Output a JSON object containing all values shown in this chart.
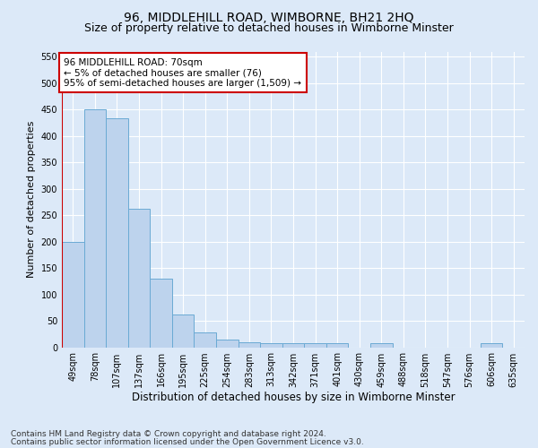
{
  "title": "96, MIDDLEHILL ROAD, WIMBORNE, BH21 2HQ",
  "subtitle": "Size of property relative to detached houses in Wimborne Minster",
  "xlabel": "Distribution of detached houses by size in Wimborne Minster",
  "ylabel": "Number of detached properties",
  "footer_line1": "Contains HM Land Registry data © Crown copyright and database right 2024.",
  "footer_line2": "Contains public sector information licensed under the Open Government Licence v3.0.",
  "categories": [
    "49sqm",
    "78sqm",
    "107sqm",
    "137sqm",
    "166sqm",
    "195sqm",
    "225sqm",
    "254sqm",
    "283sqm",
    "313sqm",
    "342sqm",
    "371sqm",
    "401sqm",
    "430sqm",
    "459sqm",
    "488sqm",
    "518sqm",
    "547sqm",
    "576sqm",
    "606sqm",
    "635sqm"
  ],
  "values": [
    200,
    450,
    433,
    262,
    130,
    62,
    28,
    14,
    9,
    7,
    7,
    7,
    7,
    0,
    7,
    0,
    0,
    0,
    0,
    7,
    0
  ],
  "bar_color": "#bdd3ed",
  "bar_edge_color": "#6aaad4",
  "annotation_box_text": "96 MIDDLEHILL ROAD: 70sqm\n← 5% of detached houses are smaller (76)\n95% of semi-detached houses are larger (1,509) →",
  "annotation_box_facecolor": "white",
  "annotation_box_edgecolor": "#cc0000",
  "marker_line_color": "#cc0000",
  "ylim": [
    0,
    560
  ],
  "yticks": [
    0,
    50,
    100,
    150,
    200,
    250,
    300,
    350,
    400,
    450,
    500,
    550
  ],
  "background_color": "#dce9f8",
  "plot_bg_color": "#dce9f8",
  "grid_color": "#c0d0e8",
  "title_fontsize": 10,
  "subtitle_fontsize": 9,
  "xlabel_fontsize": 8.5,
  "ylabel_fontsize": 8,
  "tick_fontsize": 7,
  "footer_fontsize": 6.5,
  "annot_fontsize": 7.5
}
